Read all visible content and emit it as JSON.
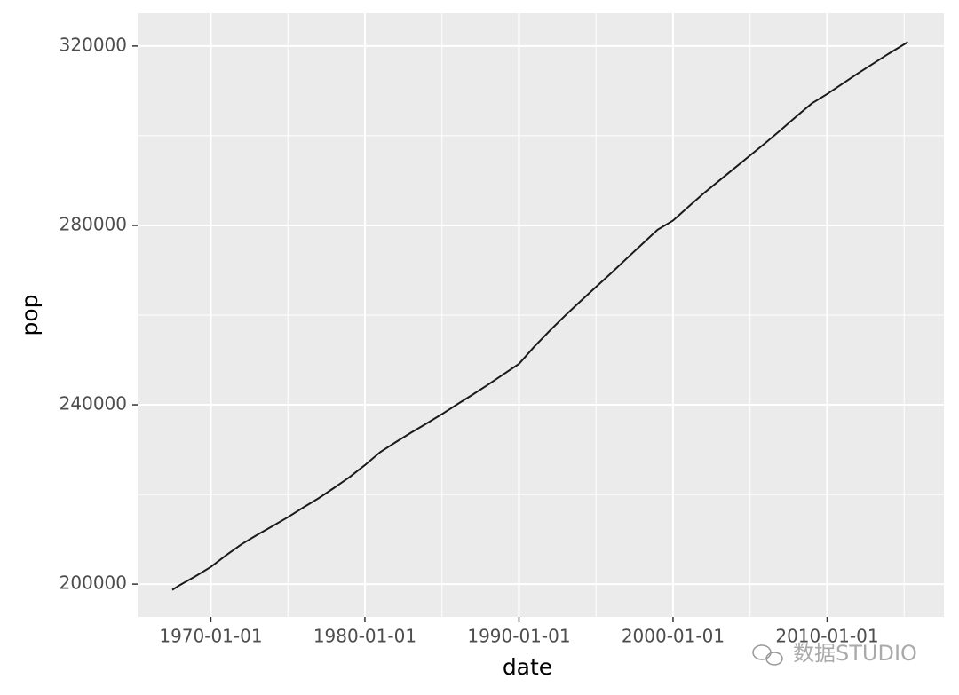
{
  "chart_data": {
    "type": "line",
    "x_label": "date",
    "y_label": "pop",
    "x": [
      "1967-07-01",
      "1968-01-01",
      "1969-01-01",
      "1970-01-01",
      "1971-01-01",
      "1972-01-01",
      "1973-01-01",
      "1974-01-01",
      "1975-01-01",
      "1976-01-01",
      "1977-01-01",
      "1978-01-01",
      "1979-01-01",
      "1980-01-01",
      "1981-01-01",
      "1982-01-01",
      "1983-01-01",
      "1984-01-01",
      "1985-01-01",
      "1986-01-01",
      "1987-01-01",
      "1988-01-01",
      "1989-01-01",
      "1990-01-01",
      "1991-01-01",
      "1992-01-01",
      "1993-01-01",
      "1994-01-01",
      "1995-01-01",
      "1996-01-01",
      "1997-01-01",
      "1998-01-01",
      "1999-01-01",
      "2000-01-01",
      "2001-01-01",
      "2002-01-01",
      "2003-01-01",
      "2004-01-01",
      "2005-01-01",
      "2006-01-01",
      "2007-01-01",
      "2008-01-01",
      "2009-01-01",
      "2010-01-01",
      "2011-01-01",
      "2012-01-01",
      "2013-01-01",
      "2014-01-01",
      "2015-04-01"
    ],
    "series": [
      {
        "name": "pop",
        "color": "#1a1a1a",
        "values": [
          198712,
          199808,
          201760,
          203849,
          206466,
          208917,
          210985,
          212932,
          214931,
          217095,
          219179,
          221477,
          223865,
          226554,
          229466,
          231664,
          233792,
          235825,
          237924,
          240133,
          242289,
          244499,
          246819,
          249123,
          252981,
          256514,
          259919,
          263126,
          266278,
          269394,
          272657,
          275854,
          279040,
          281083,
          284169,
          287190,
          290000,
          292800,
          295600,
          298400,
          301300,
          304300,
          307200,
          309300,
          311600,
          313900,
          316100,
          318300,
          320887
        ]
      }
    ],
    "xlim": [
      "1965-04-01",
      "2017-08-01"
    ],
    "xticks": [
      "1970-01-01",
      "1980-01-01",
      "1990-01-01",
      "2000-01-01",
      "2010-01-01"
    ],
    "x_minor_ticks": [
      "1975-01-01",
      "1985-01-01",
      "1995-01-01",
      "2005-01-01",
      "2015-01-01"
    ],
    "ylim": [
      192700,
      327300
    ],
    "yticks": [
      200000,
      240000,
      280000,
      320000
    ],
    "y_minor_ticks": [
      220000,
      260000,
      300000
    ],
    "grid": true,
    "watermark": "数据STUDIO"
  }
}
